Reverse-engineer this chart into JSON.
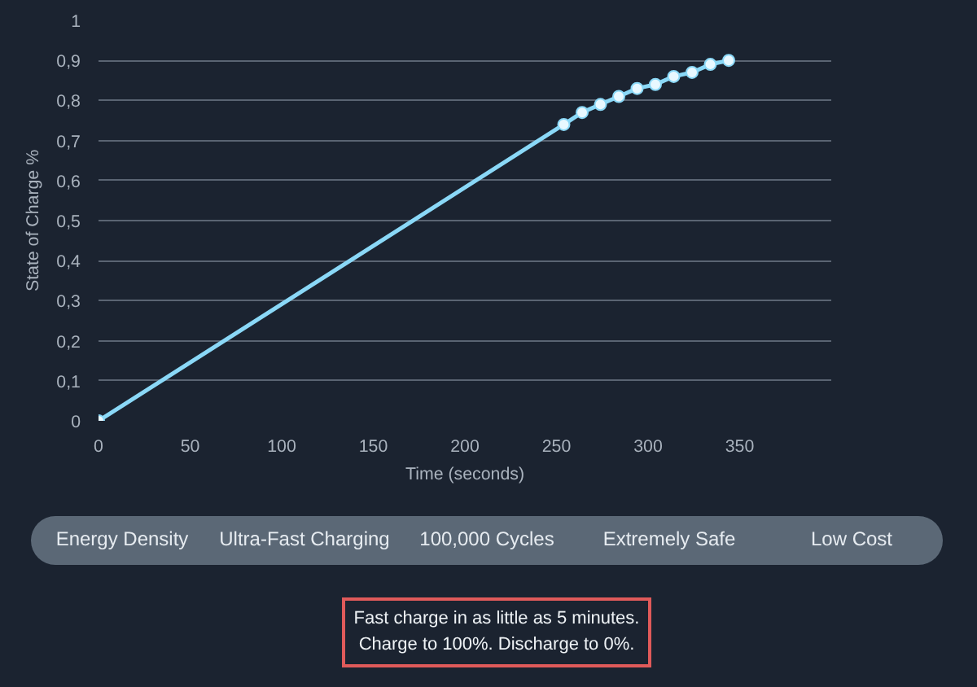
{
  "chart_data": {
    "type": "line",
    "xlabel": "Time (seconds)",
    "ylabel": "State of Charge %",
    "series": [
      {
        "color": "#8ad8f7",
        "x": [
          0,
          254,
          264,
          274,
          284,
          294,
          304,
          314,
          324,
          334,
          344
        ],
        "values": [
          0,
          0.74,
          0.77,
          0.79,
          0.81,
          0.83,
          0.84,
          0.86,
          0.87,
          0.89,
          0.9
        ]
      }
    ],
    "xlim": [
      0,
      400
    ],
    "xticks": [
      0,
      50,
      100,
      150,
      200,
      250,
      300,
      350
    ],
    "ylim": [
      0,
      1
    ],
    "yticks": [
      0,
      {
        "value": 0.1,
        "label": "0,1"
      },
      {
        "value": 0.2,
        "label": "0,2"
      },
      {
        "value": 0.3,
        "label": "0,3"
      },
      {
        "value": 0.4,
        "label": "0,4"
      },
      {
        "value": 0.5,
        "label": "0,5"
      },
      {
        "value": 0.6,
        "label": "0,6"
      },
      {
        "value": 0.7,
        "label": "0,7"
      },
      {
        "value": 0.8,
        "label": "0,8"
      },
      {
        "value": 0.9,
        "label": "0,9"
      },
      1
    ],
    "grid": "y",
    "marker": "circle",
    "line_style": "solid",
    "annotations": [
      "Energy Density",
      "Ultra-Fast Charging",
      "100,000 Cycles",
      "Extremely Safe",
      "Low Cost",
      "Fast charge in as little as 5 minutes.\nCharge to 100%. Discharge to 0%."
    ]
  }
}
